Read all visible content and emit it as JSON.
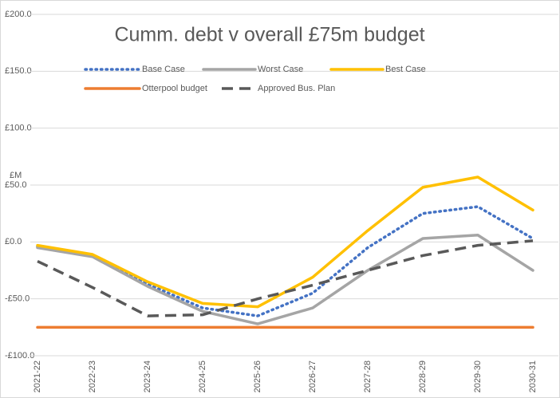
{
  "chart_data": {
    "type": "line",
    "title": "Cumm. debt v overall £75m budget",
    "y_label": "£M",
    "categories": [
      "2021-22",
      "2022-23",
      "2023-24",
      "2024-25",
      "2025-26",
      "2026-27",
      "2027-28",
      "2028-29",
      "2029-30",
      "2030-31"
    ],
    "series": [
      {
        "name": "Base Case",
        "color": "#4472c4",
        "dash": "dotted",
        "values": [
          -4,
          -12,
          -37,
          -58,
          -65,
          -45,
          -5,
          25,
          31,
          3
        ]
      },
      {
        "name": "Worst Case",
        "color": "#a5a5a5",
        "dash": "solid",
        "values": [
          -5,
          -13,
          -39,
          -61,
          -72,
          -58,
          -25,
          3,
          6,
          -25
        ]
      },
      {
        "name": "Best Case",
        "color": "#ffc000",
        "dash": "solid",
        "values": [
          -3,
          -11,
          -35,
          -54,
          -57,
          -31,
          10,
          48,
          57,
          28
        ]
      },
      {
        "name": "Otterpool budget",
        "color": "#ed7d31",
        "dash": "solid",
        "values": [
          -75,
          -75,
          -75,
          -75,
          -75,
          -75,
          -75,
          -75,
          -75,
          -75
        ]
      },
      {
        "name": "Approved Bus. Plan",
        "color": "#595959",
        "dash": "dashed",
        "values": [
          -17,
          -40,
          -65,
          -64,
          -50,
          -38,
          -25,
          -12,
          -3,
          1
        ]
      }
    ],
    "ylim": [
      -100,
      200
    ],
    "yticks": [
      {
        "value": -100,
        "label": "-£100.0"
      },
      {
        "value": -50,
        "label": "-£50.0"
      },
      {
        "value": 0,
        "label": "£0.0"
      },
      {
        "value": 50,
        "label": "£50.0"
      },
      {
        "value": 100,
        "label": "£100.0"
      },
      {
        "value": 150,
        "label": "£150.0"
      },
      {
        "value": 200,
        "label": "£200.0"
      }
    ],
    "grid": true
  }
}
